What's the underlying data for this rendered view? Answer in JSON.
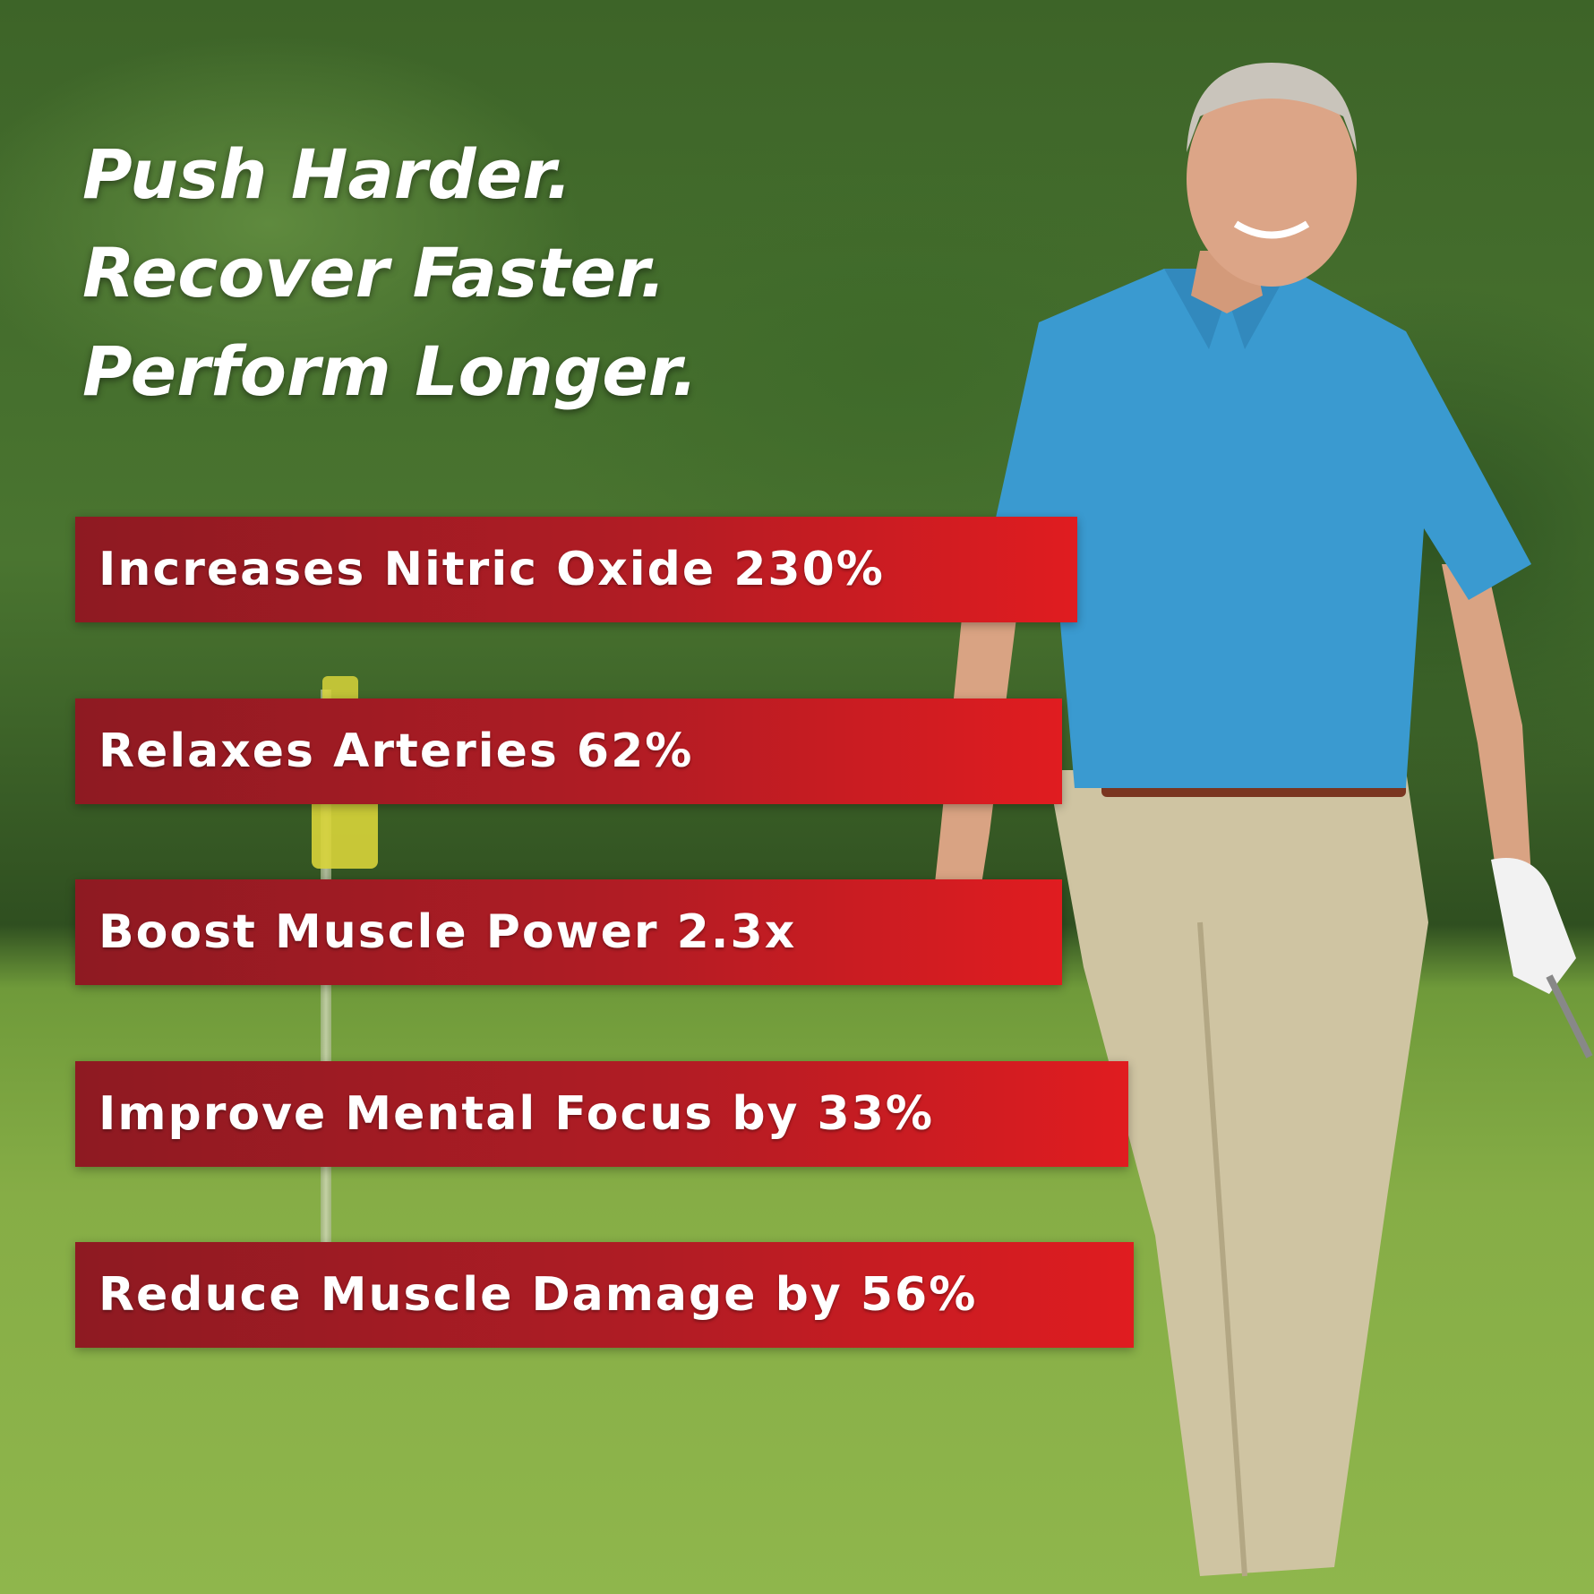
{
  "headline": {
    "lines": [
      "Push Harder.",
      "Recover Faster.",
      "Perform Longer."
    ]
  },
  "benefits": [
    {
      "label": "Increases Nitric Oxide 230%"
    },
    {
      "label": "Relaxes Arteries 62%"
    },
    {
      "label": "Boost Muscle Power 2.3x"
    },
    {
      "label": "Improve Mental Focus by 33%"
    },
    {
      "label": "Reduce Muscle Damage by 56%"
    }
  ],
  "colors": {
    "banner_dark": "#8e1a22",
    "banner_bright": "#e01c20",
    "shirt": "#3a9ad0",
    "pants": "#cfc4a2"
  }
}
